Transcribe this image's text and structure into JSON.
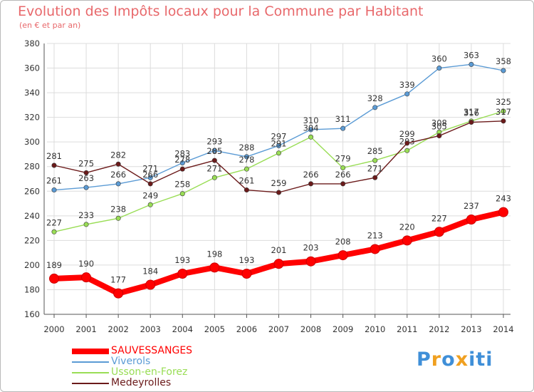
{
  "header": {
    "title": "Evolution des Impôts locaux pour la Commune par Habitant",
    "subtitle": "(en € et par an)"
  },
  "chart_data": {
    "type": "line",
    "title": "Evolution des Impôts locaux pour la Commune par Habitant",
    "subtitle": "(en € et par an)",
    "xlabel": "",
    "ylabel": "",
    "x": [
      "2000",
      "2001",
      "2002",
      "2003",
      "2004",
      "2005",
      "2006",
      "2007",
      "2008",
      "2009",
      "2010",
      "2011",
      "2012",
      "2013",
      "2014"
    ],
    "ylim": [
      160,
      380
    ],
    "yticks": [
      160,
      180,
      200,
      220,
      240,
      260,
      280,
      300,
      320,
      340,
      360,
      380
    ],
    "grid": true,
    "legend": "bottom-left",
    "series": [
      {
        "name": "SAUVESSANGES",
        "color": "#ff0000",
        "values": [
          189,
          190,
          177,
          184,
          193,
          198,
          193,
          201,
          203,
          208,
          213,
          220,
          227,
          237,
          243
        ]
      },
      {
        "name": "Viverols",
        "color": "#5b9bd5",
        "values": [
          261,
          263,
          266,
          271,
          283,
          293,
          288,
          297,
          310,
          311,
          328,
          339,
          360,
          363,
          358
        ]
      },
      {
        "name": "Usson-en-Forez",
        "color": "#99dd55",
        "values": [
          227,
          233,
          238,
          249,
          258,
          271,
          278,
          291,
          304,
          279,
          285,
          293,
          308,
          317,
          325
        ]
      },
      {
        "name": "Medeyrolles",
        "color": "#6b1a1a",
        "values": [
          281,
          275,
          282,
          266,
          278,
          285,
          261,
          259,
          266,
          266,
          271,
          299,
          305,
          316,
          317
        ]
      }
    ]
  },
  "logo": {
    "letters": [
      "P",
      "r",
      "o",
      "x",
      "i",
      "t",
      "i"
    ],
    "colors": [
      "#3f8fd8",
      "#f0a020",
      "#3f8fd8",
      "#f0a020",
      "#3f8fd8",
      "#3f8fd8",
      "#3f8fd8"
    ]
  }
}
